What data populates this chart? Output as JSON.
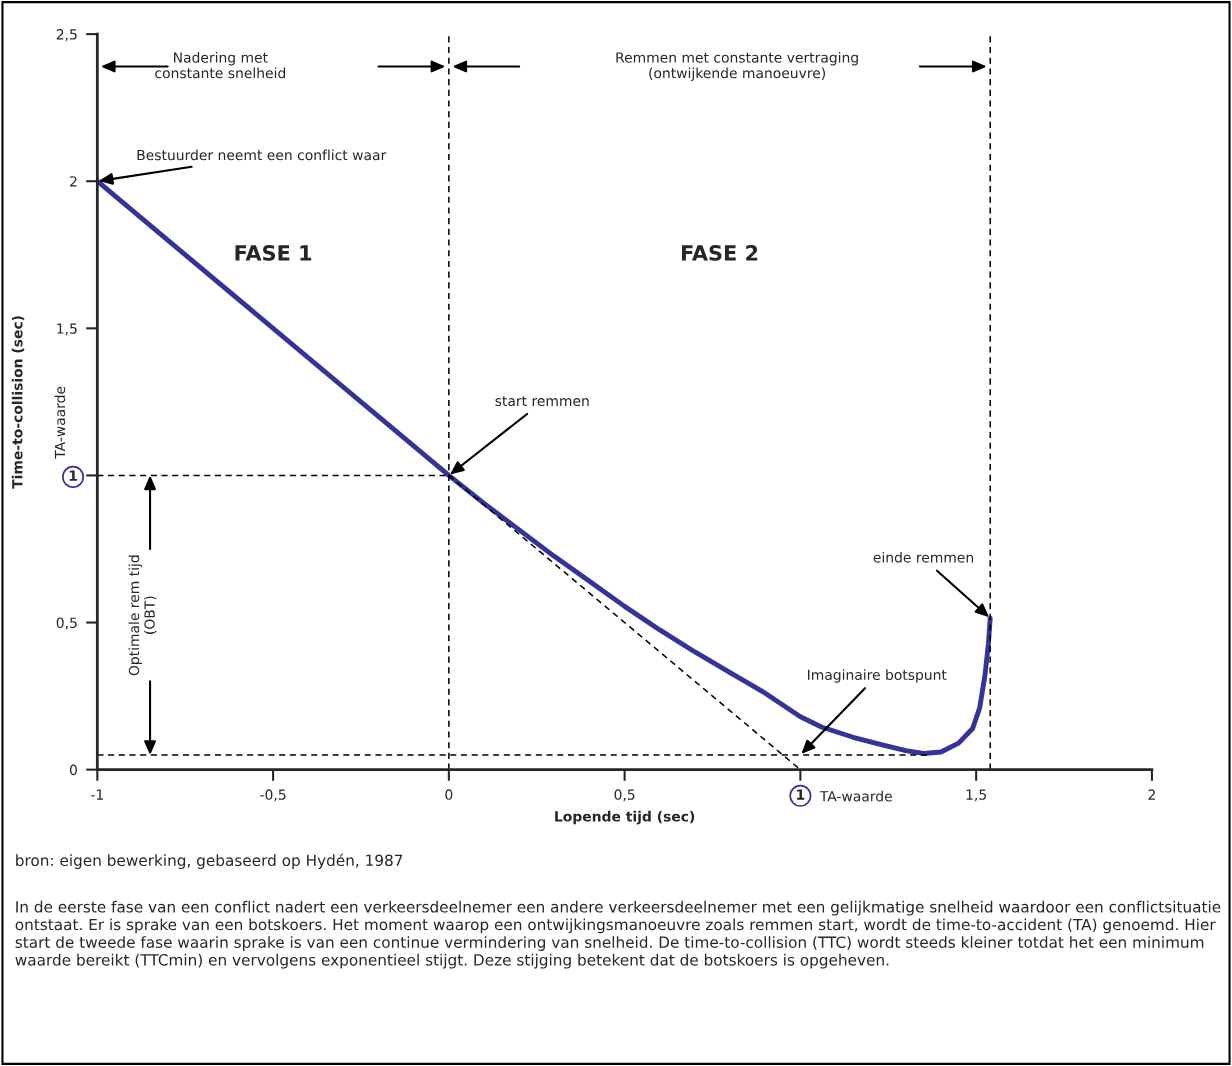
{
  "chart_data": {
    "type": "line",
    "xlabel": "Lopende tijd (sec)",
    "ylabel": "Time-to-collision (sec)",
    "xlim": [
      -1,
      2
    ],
    "ylim": [
      0,
      2.5
    ],
    "xticks": [
      {
        "value": -1,
        "label": "-1"
      },
      {
        "value": -0.5,
        "label": "-0,5"
      },
      0,
      {
        "value": 0.5,
        "label": "0,5"
      },
      1,
      {
        "value": 1.5,
        "label": "1,5"
      },
      2
    ],
    "yticks": [
      0,
      {
        "value": 0.5,
        "label": "0,5"
      },
      1,
      {
        "value": 1.5,
        "label": "1,5"
      },
      2,
      {
        "value": 2.5,
        "label": "2,5"
      }
    ],
    "grid": false,
    "legend": false,
    "marker": "none",
    "series": [
      {
        "color": "#333399",
        "line_style": "solid",
        "x": [
          -1,
          0,
          0.1,
          0.2,
          0.3,
          0.4,
          0.5,
          0.6,
          0.7,
          0.8,
          0.9,
          1.0,
          1.06,
          1.15,
          1.23,
          1.3,
          1.35,
          1.4,
          1.45,
          1.49,
          1.51,
          1.525,
          1.535,
          1.54
        ],
        "values": [
          2,
          1,
          0.905,
          0.815,
          0.725,
          0.64,
          0.555,
          0.475,
          0.4,
          0.33,
          0.26,
          0.18,
          0.145,
          0.11,
          0.085,
          0.065,
          0.055,
          0.06,
          0.09,
          0.14,
          0.21,
          0.32,
          0.43,
          0.515
        ]
      },
      {
        "color": "#000000",
        "line_style": "dashed",
        "x": [
          0,
          1
        ],
        "values": [
          1,
          0
        ]
      },
      {
        "color": "#000000",
        "line_style": "dashed",
        "x": [
          -1,
          0
        ],
        "values": [
          1,
          1
        ]
      },
      {
        "color": "#000000",
        "line_style": "dashed",
        "x": [
          -1,
          1.37
        ],
        "values": [
          0.05,
          0.05
        ]
      }
    ],
    "ref_lines": [
      {
        "axis": "x",
        "value": 0,
        "color": "#000000",
        "line_style": "dashed"
      },
      {
        "axis": "x",
        "value": 1.54,
        "color": "#000000",
        "line_style": "dashed"
      }
    ],
    "annotations": [
      {
        "text": "Bestuurder neemt een conflict waar",
        "x": -1,
        "y": 2
      },
      {
        "text": "start remmen",
        "x": 0,
        "y": 1
      },
      {
        "text": "einde remmen",
        "x": 1.54,
        "y": 0.515
      },
      {
        "text": "Imaginaire botspunt",
        "x": 1,
        "y": 0.05
      },
      {
        "text": "TA-waarde",
        "x": 1,
        "y": 0
      },
      {
        "text": "TA-waarde",
        "x": -1,
        "y": 1
      },
      "FASE 1",
      "FASE 2",
      "Nadering met\nconstante snelheid",
      "Remmen met constante vertraging\n(ontwijkende manoeuvre)",
      {
        "text": "Optimale rem tijd\n(OBT)",
        "x": -0.85,
        "y": 0.05
      },
      "bron: eigen bewerking, gebaseerd op Hydén, 1987",
      "In de eerste fase van een conflict nadert een verkeersdeelnemer een andere verkeersdeelnemer met een gelijkmatige snelheid waardoor een conflictsituatie ontstaat. Er is sprake van een botskoers. Het moment waarop een ontwijkingsmanoeuvre zoals remmen start, wordt de time-to-accident (TA) genoemd. Hier start de tweede fase waarin sprake is van een continue vermindering van snelheid. De time-to-collision (TTC) wordt steeds kleiner totdat het een minimum waarde bereikt (TTCmin) en vervolgens exponentieel stijgt. Deze stijging betekent dat de botskoers is opgeheven."
    ]
  }
}
